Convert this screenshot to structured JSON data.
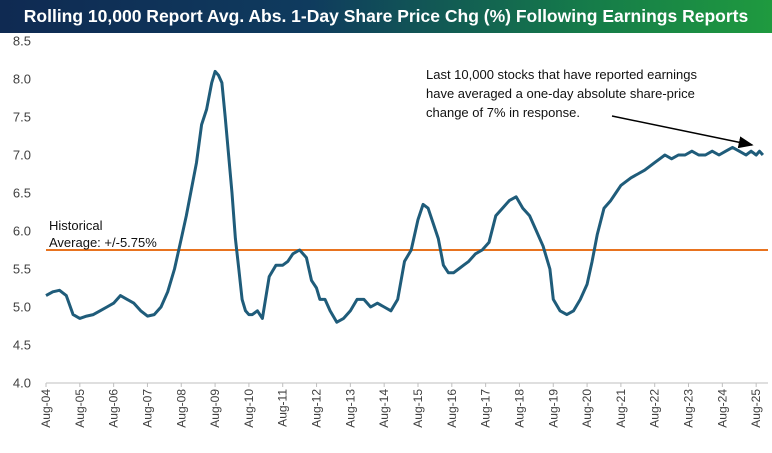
{
  "chart_data": {
    "type": "line",
    "title": "Rolling 10,000 Report Avg. Abs. 1-Day Share Price Chg (%) Following Earnings Reports",
    "xlabel": "",
    "ylabel": "",
    "ylim": [
      4.0,
      8.5
    ],
    "yticks": [
      "4.0",
      "4.5",
      "5.0",
      "5.5",
      "6.0",
      "6.5",
      "7.0",
      "7.5",
      "8.0",
      "8.5"
    ],
    "xticks": [
      "Aug-04",
      "Aug-05",
      "Aug-06",
      "Aug-07",
      "Aug-08",
      "Aug-09",
      "Aug-10",
      "Aug-11",
      "Aug-12",
      "Aug-13",
      "Aug-14",
      "Aug-15",
      "Aug-16",
      "Aug-17",
      "Aug-18",
      "Aug-19",
      "Aug-20",
      "Aug-21",
      "Aug-22",
      "Aug-23",
      "Aug-24",
      "Aug-25"
    ],
    "grid": false,
    "legend": "none",
    "colors": {
      "line": "#1f5c7a",
      "reference": "#e8731f",
      "title_start": "#0f2a52",
      "title_end": "#1f9a3f"
    },
    "reference_line": {
      "value": 5.75,
      "label_line1": "Historical",
      "label_line2": "Average: +/-5.75%"
    },
    "annotation": {
      "lines": [
        "Last 10,000 stocks that have reported earnings",
        "have averaged a one-day absolute share-price",
        "change of 7% in response."
      ],
      "arrow_to": [
        2025.0,
        7.0
      ]
    },
    "series": [
      {
        "x": [
          2004.0,
          2004.2,
          2004.4,
          2004.6,
          2004.8,
          2005.0,
          2005.2,
          2005.4,
          2005.6,
          2005.8,
          2006.0,
          2006.2,
          2006.4,
          2006.6,
          2006.8,
          2007.0,
          2007.2,
          2007.4,
          2007.6,
          2007.8,
          2008.0,
          2008.15,
          2008.3,
          2008.45,
          2008.6,
          2008.75,
          2008.9,
          2009.0,
          2009.1,
          2009.2,
          2009.3,
          2009.4,
          2009.5,
          2009.6,
          2009.7,
          2009.8,
          2009.9,
          2010.0,
          2010.1,
          2010.25,
          2010.4,
          2010.6,
          2010.8,
          2011.0,
          2011.15,
          2011.3,
          2011.5,
          2011.7,
          2011.85,
          2012.0,
          2012.1,
          2012.25,
          2012.4,
          2012.6,
          2012.8,
          2013.0,
          2013.2,
          2013.4,
          2013.6,
          2013.8,
          2014.0,
          2014.2,
          2014.4,
          2014.6,
          2014.8,
          2015.0,
          2015.15,
          2015.3,
          2015.45,
          2015.6,
          2015.75,
          2015.9,
          2016.05,
          2016.2,
          2016.35,
          2016.5,
          2016.7,
          2016.9,
          2017.1,
          2017.3,
          2017.5,
          2017.7,
          2017.9,
          2018.1,
          2018.3,
          2018.5,
          2018.7,
          2018.9,
          2019.0,
          2019.2,
          2019.4,
          2019.6,
          2019.8,
          2020.0,
          2020.15,
          2020.3,
          2020.5,
          2020.7,
          2020.85,
          2021.0,
          2021.15,
          2021.3,
          2021.5,
          2021.7,
          2021.85,
          2022.0,
          2022.15,
          2022.3,
          2022.5,
          2022.7,
          2022.9,
          2023.1,
          2023.3,
          2023.5,
          2023.7,
          2023.9,
          2024.1,
          2024.3,
          2024.5,
          2024.7,
          2024.85,
          2025.0,
          2025.1,
          2025.2
        ],
        "y": [
          5.15,
          5.2,
          5.22,
          5.15,
          4.9,
          4.85,
          4.88,
          4.9,
          4.95,
          5.0,
          5.05,
          5.15,
          5.1,
          5.05,
          4.95,
          4.88,
          4.9,
          5.0,
          5.2,
          5.5,
          5.9,
          6.2,
          6.55,
          6.9,
          7.4,
          7.6,
          7.95,
          8.1,
          8.05,
          7.95,
          7.5,
          7.0,
          6.5,
          5.9,
          5.5,
          5.1,
          4.95,
          4.9,
          4.9,
          4.95,
          4.85,
          5.4,
          5.55,
          5.55,
          5.6,
          5.7,
          5.75,
          5.65,
          5.35,
          5.25,
          5.1,
          5.1,
          4.95,
          4.8,
          4.85,
          4.95,
          5.1,
          5.1,
          5.0,
          5.05,
          5.0,
          4.95,
          5.1,
          5.6,
          5.75,
          6.15,
          6.35,
          6.3,
          6.1,
          5.9,
          5.55,
          5.45,
          5.45,
          5.5,
          5.55,
          5.6,
          5.7,
          5.75,
          5.85,
          6.2,
          6.3,
          6.4,
          6.45,
          6.3,
          6.2,
          6.0,
          5.8,
          5.5,
          5.1,
          4.95,
          4.9,
          4.95,
          5.1,
          5.3,
          5.6,
          5.95,
          6.3,
          6.4,
          6.5,
          6.6,
          6.65,
          6.7,
          6.75,
          6.8,
          6.85,
          6.9,
          6.95,
          7.0,
          6.95,
          7.0,
          7.0,
          7.05,
          7.0,
          7.0,
          7.05,
          7.0,
          7.05,
          7.1,
          7.05,
          7.0,
          7.05,
          7.0,
          7.05,
          7.0
        ]
      }
    ]
  }
}
